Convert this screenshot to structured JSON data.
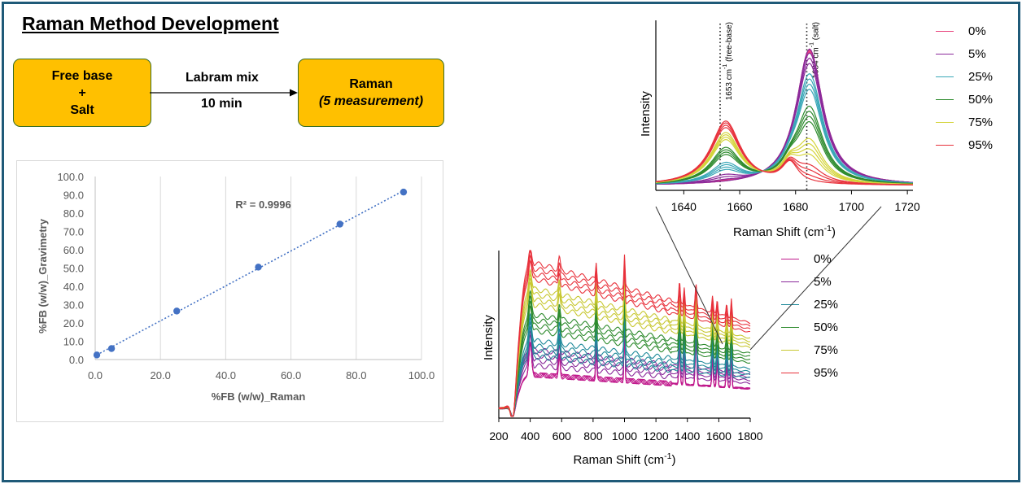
{
  "title": "Raman Method Development",
  "flow": {
    "left_box": {
      "line1": "Free base",
      "line2": "+",
      "line3": "Salt"
    },
    "arrow_label_top": "Labram mix",
    "arrow_label_bottom": "10 min",
    "right_box": {
      "line1": "Raman",
      "line2": "(5 measurement)"
    },
    "box_color": "#ffc000"
  },
  "chart_data": [
    {
      "type": "scatter",
      "title": "",
      "xlabel": "%FB (w/w)_Raman",
      "ylabel": "%FB (w/w)_Gravimetry",
      "xlim": [
        0,
        100
      ],
      "ylim": [
        0,
        100
      ],
      "xticks": [
        "0.0",
        "20.0",
        "40.0",
        "60.0",
        "80.0",
        "100.0"
      ],
      "yticks": [
        "0.0",
        "10.0",
        "20.0",
        "30.0",
        "40.0",
        "50.0",
        "60.0",
        "70.0",
        "80.0",
        "90.0",
        "100.0"
      ],
      "grid": "vertical",
      "annotation": "R² = 0.9996",
      "trendline": "linear, dotted",
      "marker_color": "#4472c4",
      "points": [
        {
          "x": 0.5,
          "y": 2.5
        },
        {
          "x": 5.0,
          "y": 6.0
        },
        {
          "x": 25.0,
          "y": 26.5
        },
        {
          "x": 50.0,
          "y": 50.5
        },
        {
          "x": 75.0,
          "y": 74.0
        },
        {
          "x": 94.5,
          "y": 91.5
        }
      ]
    },
    {
      "type": "line",
      "title": "",
      "xlabel": "Raman Shift (cm-1)",
      "ylabel": "Intensity",
      "xlim": [
        200,
        1800
      ],
      "xticks": [
        "200",
        "400",
        "600",
        "800",
        "1000",
        "1200",
        "1400",
        "1600",
        "1800"
      ],
      "legend_position": "right",
      "series": [
        {
          "name": "0%",
          "color": "#c0198c"
        },
        {
          "name": "5%",
          "color": "#8b2a9b"
        },
        {
          "name": "25%",
          "color": "#1f8a9a"
        },
        {
          "name": "50%",
          "color": "#2e8b2e"
        },
        {
          "name": "75%",
          "color": "#c8c832"
        },
        {
          "name": "95%",
          "color": "#e8323c"
        }
      ],
      "peaks_cm1": [
        400,
        585,
        820,
        1000,
        1350,
        1380,
        1455,
        1560,
        1590,
        1650,
        1680
      ]
    },
    {
      "type": "line",
      "title": "",
      "xlabel": "Raman Shift (cm-1)",
      "ylabel": "Intensity",
      "xlim": [
        1630,
        1722
      ],
      "xticks": [
        "1640",
        "1660",
        "1680",
        "1700",
        "1720"
      ],
      "legend_position": "right",
      "annotations": [
        {
          "x": 1653,
          "label": "1653 cm-1 (free-base)"
        },
        {
          "x": 1684,
          "label": "1684 cm-1 (salt)"
        }
      ],
      "series": [
        {
          "name": "0%",
          "color": "#e8407a"
        },
        {
          "name": "5%",
          "color": "#8b2a9b"
        },
        {
          "name": "25%",
          "color": "#3aa8b8"
        },
        {
          "name": "50%",
          "color": "#2e8b2e"
        },
        {
          "name": "75%",
          "color": "#d4d43a"
        },
        {
          "name": "95%",
          "color": "#e8323c"
        }
      ]
    }
  ]
}
